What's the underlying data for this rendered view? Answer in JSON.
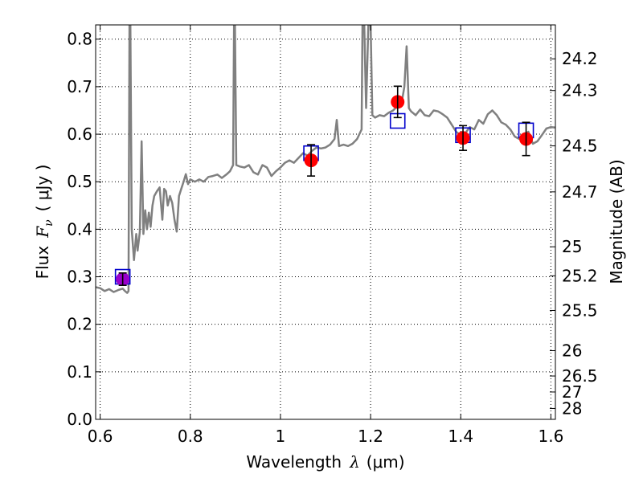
{
  "chart_data": {
    "type": "line",
    "xlabel": "Wavelength",
    "xlabel_symbol": "λ",
    "xlabel_unit": "(μm)",
    "ylabel": "Flux",
    "ylabel_symbol": "F",
    "ylabel_subscript": "ν",
    "ylabel_unit": "( μJy )",
    "y2label": "Magnitude (AB)",
    "xlim": [
      0.59,
      1.61
    ],
    "ylim": [
      0.0,
      0.83
    ],
    "x_ticks": [
      "0.6",
      "0.8",
      "1",
      "1.2",
      "1.4",
      "1.6"
    ],
    "x_tick_values": [
      0.6,
      0.8,
      1.0,
      1.2,
      1.4,
      1.6
    ],
    "y_ticks": [
      "0.0",
      "0.1",
      "0.2",
      "0.3",
      "0.4",
      "0.5",
      "0.6",
      "0.7",
      "0.8"
    ],
    "y_tick_values": [
      0.0,
      0.1,
      0.2,
      0.3,
      0.4,
      0.5,
      0.6,
      0.7,
      0.8
    ],
    "mag_ticks": [
      "24.2",
      "24.3",
      "24.5",
      "24.7",
      "25",
      "25.2",
      "25.5",
      "26",
      "26.5",
      "27",
      "28"
    ],
    "mag_tick_values": [
      24.2,
      24.3,
      24.5,
      24.7,
      25.0,
      25.2,
      25.5,
      26.0,
      26.5,
      27.0,
      28.0
    ],
    "grid": true,
    "colors": {
      "template": "#808080",
      "observed": "#ff0000",
      "model": "#0000cc",
      "first_point": "#9900cc",
      "errorbar": "#000000"
    },
    "template_spectrum": [
      [
        0.59,
        0.278
      ],
      [
        0.6,
        0.276
      ],
      [
        0.61,
        0.27
      ],
      [
        0.62,
        0.274
      ],
      [
        0.63,
        0.268
      ],
      [
        0.64,
        0.272
      ],
      [
        0.65,
        0.275
      ],
      [
        0.655,
        0.27
      ],
      [
        0.66,
        0.266
      ],
      [
        0.663,
        0.27
      ],
      [
        0.665,
        0.83
      ],
      [
        0.667,
        0.83
      ],
      [
        0.67,
        0.4
      ],
      [
        0.675,
        0.335
      ],
      [
        0.68,
        0.39
      ],
      [
        0.683,
        0.355
      ],
      [
        0.688,
        0.395
      ],
      [
        0.692,
        0.585
      ],
      [
        0.696,
        0.39
      ],
      [
        0.7,
        0.44
      ],
      [
        0.704,
        0.4
      ],
      [
        0.708,
        0.435
      ],
      [
        0.712,
        0.405
      ],
      [
        0.716,
        0.45
      ],
      [
        0.72,
        0.47
      ],
      [
        0.726,
        0.48
      ],
      [
        0.732,
        0.488
      ],
      [
        0.738,
        0.42
      ],
      [
        0.742,
        0.485
      ],
      [
        0.746,
        0.48
      ],
      [
        0.75,
        0.45
      ],
      [
        0.755,
        0.47
      ],
      [
        0.76,
        0.455
      ],
      [
        0.765,
        0.42
      ],
      [
        0.77,
        0.395
      ],
      [
        0.775,
        0.47
      ],
      [
        0.78,
        0.485
      ],
      [
        0.785,
        0.5
      ],
      [
        0.79,
        0.516
      ],
      [
        0.795,
        0.495
      ],
      [
        0.8,
        0.505
      ],
      [
        0.81,
        0.5
      ],
      [
        0.82,
        0.505
      ],
      [
        0.83,
        0.5
      ],
      [
        0.84,
        0.51
      ],
      [
        0.85,
        0.512
      ],
      [
        0.86,
        0.515
      ],
      [
        0.87,
        0.508
      ],
      [
        0.88,
        0.515
      ],
      [
        0.888,
        0.522
      ],
      [
        0.895,
        0.535
      ],
      [
        0.897,
        0.83
      ],
      [
        0.899,
        0.83
      ],
      [
        0.902,
        0.535
      ],
      [
        0.91,
        0.532
      ],
      [
        0.92,
        0.53
      ],
      [
        0.93,
        0.535
      ],
      [
        0.94,
        0.52
      ],
      [
        0.95,
        0.515
      ],
      [
        0.96,
        0.535
      ],
      [
        0.97,
        0.53
      ],
      [
        0.98,
        0.512
      ],
      [
        0.99,
        0.522
      ],
      [
        1.0,
        0.53
      ],
      [
        1.01,
        0.54
      ],
      [
        1.02,
        0.545
      ],
      [
        1.03,
        0.54
      ],
      [
        1.04,
        0.55
      ],
      [
        1.05,
        0.56
      ],
      [
        1.06,
        0.555
      ],
      [
        1.07,
        0.565
      ],
      [
        1.08,
        0.572
      ],
      [
        1.09,
        0.57
      ],
      [
        1.1,
        0.572
      ],
      [
        1.11,
        0.578
      ],
      [
        1.12,
        0.59
      ],
      [
        1.125,
        0.63
      ],
      [
        1.13,
        0.575
      ],
      [
        1.14,
        0.578
      ],
      [
        1.15,
        0.575
      ],
      [
        1.16,
        0.58
      ],
      [
        1.17,
        0.59
      ],
      [
        1.18,
        0.61
      ],
      [
        1.182,
        0.83
      ],
      [
        1.186,
        0.83
      ],
      [
        1.19,
        0.655
      ],
      [
        1.195,
        0.83
      ],
      [
        1.2,
        0.83
      ],
      [
        1.204,
        0.64
      ],
      [
        1.21,
        0.635
      ],
      [
        1.22,
        0.64
      ],
      [
        1.23,
        0.638
      ],
      [
        1.24,
        0.645
      ],
      [
        1.25,
        0.65
      ],
      [
        1.26,
        0.66
      ],
      [
        1.27,
        0.672
      ],
      [
        1.275,
        0.7
      ],
      [
        1.28,
        0.785
      ],
      [
        1.285,
        0.655
      ],
      [
        1.29,
        0.648
      ],
      [
        1.3,
        0.64
      ],
      [
        1.31,
        0.652
      ],
      [
        1.32,
        0.64
      ],
      [
        1.33,
        0.638
      ],
      [
        1.34,
        0.65
      ],
      [
        1.35,
        0.648
      ],
      [
        1.36,
        0.642
      ],
      [
        1.37,
        0.635
      ],
      [
        1.38,
        0.62
      ],
      [
        1.39,
        0.605
      ],
      [
        1.4,
        0.598
      ],
      [
        1.41,
        0.602
      ],
      [
        1.42,
        0.615
      ],
      [
        1.43,
        0.61
      ],
      [
        1.44,
        0.63
      ],
      [
        1.45,
        0.622
      ],
      [
        1.46,
        0.642
      ],
      [
        1.47,
        0.65
      ],
      [
        1.48,
        0.64
      ],
      [
        1.49,
        0.625
      ],
      [
        1.5,
        0.62
      ],
      [
        1.51,
        0.61
      ],
      [
        1.52,
        0.595
      ],
      [
        1.53,
        0.59
      ],
      [
        1.54,
        0.6
      ],
      [
        1.55,
        0.605
      ],
      [
        1.56,
        0.58
      ],
      [
        1.57,
        0.585
      ],
      [
        1.58,
        0.598
      ],
      [
        1.59,
        0.612
      ],
      [
        1.6,
        0.615
      ],
      [
        1.61,
        0.614
      ]
    ],
    "observed_points": [
      {
        "x": 0.65,
        "y": 0.295,
        "yerr": 0.013
      },
      {
        "x": 1.068,
        "y": 0.545,
        "yerr": 0.033
      },
      {
        "x": 1.26,
        "y": 0.668,
        "yerr": 0.033
      },
      {
        "x": 1.405,
        "y": 0.592,
        "yerr": 0.026
      },
      {
        "x": 1.545,
        "y": 0.59,
        "yerr": 0.035
      }
    ],
    "model_points": [
      {
        "x": 0.65,
        "y": 0.3
      },
      {
        "x": 1.068,
        "y": 0.56
      },
      {
        "x": 1.26,
        "y": 0.628
      },
      {
        "x": 1.405,
        "y": 0.598
      },
      {
        "x": 1.545,
        "y": 0.608
      }
    ]
  }
}
